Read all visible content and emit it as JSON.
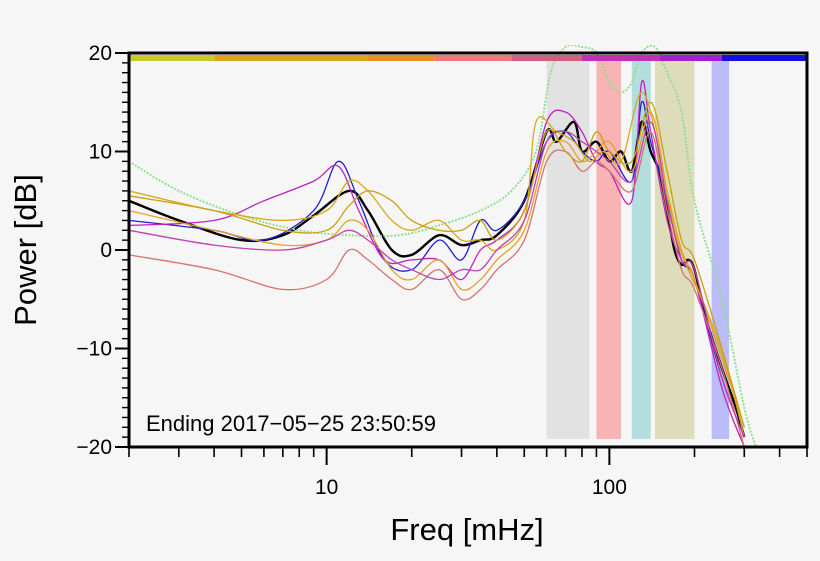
{
  "chart_data": {
    "type": "line",
    "title": "",
    "xlabel": "Freq [mHz]",
    "ylabel": "Power [dB]",
    "xscale": "log",
    "xlim": [
      2,
      500
    ],
    "ylim": [
      -20,
      20
    ],
    "x_ticks": [
      10,
      100
    ],
    "y_ticks": [
      20,
      10,
      0,
      -10,
      -20
    ],
    "x_tick_labels": [
      "10",
      "100"
    ],
    "y_tick_labels": [
      "20",
      "10",
      "0",
      "−10",
      "−20"
    ],
    "grid": false,
    "annotation": "Ending 2017−05−25 23:50:59",
    "top_color_bar": [
      {
        "from": 2,
        "to": 4,
        "color": "#c8c828"
      },
      {
        "from": 4,
        "to": 14,
        "color": "#d8a818"
      },
      {
        "from": 14,
        "to": 24,
        "color": "#e89020"
      },
      {
        "from": 24,
        "to": 45,
        "color": "#f07878"
      },
      {
        "from": 45,
        "to": 80,
        "color": "#d06080"
      },
      {
        "from": 80,
        "to": 150,
        "color": "#c030b0"
      },
      {
        "from": 150,
        "to": 250,
        "color": "#a020d0"
      },
      {
        "from": 250,
        "to": 500,
        "color": "#1010e0"
      }
    ],
    "bands": [
      {
        "from": 60,
        "to": 85,
        "color": "#dedede"
      },
      {
        "from": 90,
        "to": 110,
        "color": "#f8a8a8"
      },
      {
        "from": 120,
        "to": 140,
        "color": "#a8d8d8"
      },
      {
        "from": 145,
        "to": 200,
        "color": "#d8d8b0"
      },
      {
        "from": 230,
        "to": 265,
        "color": "#b0b0f8"
      }
    ],
    "series": [
      {
        "color": "#000000",
        "width": 2.4,
        "points": [
          [
            2,
            5
          ],
          [
            3,
            3
          ],
          [
            5,
            1
          ],
          [
            7,
            1.5
          ],
          [
            9,
            3.5
          ],
          [
            12,
            6
          ],
          [
            14,
            4
          ],
          [
            17,
            0
          ],
          [
            20,
            -0.5
          ],
          [
            25,
            1.5
          ],
          [
            30,
            0.5
          ],
          [
            35,
            1
          ],
          [
            40,
            1.5
          ],
          [
            50,
            5
          ],
          [
            60,
            12
          ],
          [
            65,
            11
          ],
          [
            75,
            13
          ],
          [
            80,
            10
          ],
          [
            90,
            11
          ],
          [
            100,
            9
          ],
          [
            110,
            10
          ],
          [
            120,
            8
          ],
          [
            130,
            13
          ],
          [
            140,
            10
          ],
          [
            150,
            8
          ],
          [
            160,
            4
          ],
          [
            170,
            0
          ],
          [
            180,
            -1.5
          ],
          [
            190,
            -1
          ],
          [
            200,
            -2
          ],
          [
            220,
            -7
          ],
          [
            250,
            -12
          ],
          [
            280,
            -16
          ],
          [
            300,
            -19
          ]
        ]
      },
      {
        "color": "#90e090",
        "width": 2,
        "dashed": true,
        "points": [
          [
            2,
            9
          ],
          [
            3,
            6
          ],
          [
            5,
            3.5
          ],
          [
            8,
            2
          ],
          [
            12,
            1.5
          ],
          [
            18,
            1.5
          ],
          [
            25,
            2.5
          ],
          [
            35,
            4
          ],
          [
            45,
            6
          ],
          [
            55,
            10
          ],
          [
            62,
            18
          ],
          [
            70,
            22
          ],
          [
            80,
            25
          ],
          [
            90,
            20
          ],
          [
            100,
            17
          ],
          [
            110,
            16
          ],
          [
            120,
            17
          ],
          [
            130,
            20
          ],
          [
            145,
            23
          ],
          [
            160,
            18
          ],
          [
            180,
            14
          ],
          [
            200,
            5
          ],
          [
            250,
            -5
          ],
          [
            300,
            -16
          ],
          [
            330,
            -20
          ]
        ]
      },
      {
        "color": "#2020cc",
        "width": 1.3,
        "points": [
          [
            2,
            3
          ],
          [
            4,
            2
          ],
          [
            6,
            1
          ],
          [
            9,
            4
          ],
          [
            11,
            9
          ],
          [
            13,
            5
          ],
          [
            16,
            -1
          ],
          [
            20,
            -2
          ],
          [
            25,
            1
          ],
          [
            30,
            -1
          ],
          [
            35,
            3
          ],
          [
            40,
            2
          ],
          [
            50,
            5
          ],
          [
            60,
            11
          ],
          [
            70,
            12
          ],
          [
            80,
            10
          ],
          [
            90,
            9
          ],
          [
            100,
            10
          ],
          [
            120,
            7
          ],
          [
            130,
            15
          ],
          [
            140,
            11
          ],
          [
            160,
            5
          ],
          [
            180,
            -1
          ],
          [
            200,
            -3
          ],
          [
            250,
            -13
          ],
          [
            300,
            -19
          ]
        ]
      },
      {
        "color": "#c020c0",
        "width": 1.3,
        "points": [
          [
            2,
            2.5
          ],
          [
            4,
            3
          ],
          [
            6,
            5
          ],
          [
            9,
            7
          ],
          [
            11,
            8.5
          ],
          [
            13,
            4
          ],
          [
            16,
            -1
          ],
          [
            20,
            -1
          ],
          [
            25,
            -1
          ],
          [
            30,
            -3
          ],
          [
            35,
            0
          ],
          [
            40,
            1
          ],
          [
            50,
            4
          ],
          [
            60,
            13
          ],
          [
            70,
            14
          ],
          [
            80,
            12
          ],
          [
            90,
            9
          ],
          [
            100,
            8
          ],
          [
            120,
            5
          ],
          [
            130,
            17
          ],
          [
            140,
            12
          ],
          [
            160,
            3
          ],
          [
            180,
            -1
          ],
          [
            200,
            -3
          ],
          [
            250,
            -14
          ],
          [
            300,
            -20
          ]
        ]
      },
      {
        "color": "#d8a818",
        "width": 1.3,
        "points": [
          [
            2,
            6
          ],
          [
            4,
            4
          ],
          [
            7,
            3
          ],
          [
            10,
            4
          ],
          [
            12,
            7
          ],
          [
            14,
            6
          ],
          [
            17,
            3
          ],
          [
            20,
            2
          ],
          [
            25,
            3
          ],
          [
            30,
            1
          ],
          [
            35,
            1
          ],
          [
            40,
            0
          ],
          [
            50,
            3
          ],
          [
            55,
            13
          ],
          [
            65,
            12
          ],
          [
            75,
            11
          ],
          [
            85,
            9
          ],
          [
            95,
            10
          ],
          [
            110,
            9
          ],
          [
            130,
            16
          ],
          [
            150,
            10
          ],
          [
            170,
            2
          ],
          [
            190,
            -2
          ],
          [
            220,
            -6
          ],
          [
            260,
            -12
          ],
          [
            300,
            -19
          ]
        ]
      },
      {
        "color": "#e8a028",
        "width": 1.3,
        "points": [
          [
            2,
            4
          ],
          [
            4,
            2
          ],
          [
            7,
            0.5
          ],
          [
            10,
            1
          ],
          [
            12,
            3
          ],
          [
            14,
            2
          ],
          [
            17,
            -2
          ],
          [
            20,
            -3
          ],
          [
            25,
            -1
          ],
          [
            30,
            -4
          ],
          [
            35,
            -3
          ],
          [
            40,
            -1
          ],
          [
            50,
            2
          ],
          [
            60,
            10
          ],
          [
            70,
            11
          ],
          [
            80,
            9
          ],
          [
            90,
            10
          ],
          [
            100,
            11
          ],
          [
            120,
            8
          ],
          [
            140,
            14
          ],
          [
            160,
            6
          ],
          [
            180,
            0
          ],
          [
            200,
            -3
          ],
          [
            250,
            -11
          ],
          [
            300,
            -18
          ]
        ]
      },
      {
        "color": "#d87070",
        "width": 1.3,
        "points": [
          [
            2,
            -0.5
          ],
          [
            4,
            -2
          ],
          [
            7,
            -4
          ],
          [
            10,
            -3
          ],
          [
            12,
            0
          ],
          [
            14,
            -1
          ],
          [
            17,
            -3
          ],
          [
            20,
            -4
          ],
          [
            25,
            -2
          ],
          [
            30,
            -5
          ],
          [
            35,
            -4
          ],
          [
            40,
            -2
          ],
          [
            50,
            1
          ],
          [
            60,
            9
          ],
          [
            70,
            10
          ],
          [
            80,
            8
          ],
          [
            90,
            9
          ],
          [
            100,
            8
          ],
          [
            120,
            6
          ],
          [
            140,
            12
          ],
          [
            160,
            4
          ],
          [
            180,
            -2
          ],
          [
            200,
            -4
          ],
          [
            250,
            -12
          ],
          [
            300,
            -20
          ]
        ]
      },
      {
        "color": "#c8a010",
        "width": 1.3,
        "points": [
          [
            2,
            5.5
          ],
          [
            4,
            4
          ],
          [
            7,
            2
          ],
          [
            10,
            2
          ],
          [
            12,
            4.5
          ],
          [
            14,
            6
          ],
          [
            17,
            5
          ],
          [
            20,
            3
          ],
          [
            25,
            2
          ],
          [
            30,
            2
          ],
          [
            35,
            3
          ],
          [
            40,
            1
          ],
          [
            50,
            4
          ],
          [
            60,
            12
          ],
          [
            70,
            10
          ],
          [
            80,
            9
          ],
          [
            90,
            12
          ],
          [
            100,
            10
          ],
          [
            120,
            9
          ],
          [
            140,
            15
          ],
          [
            160,
            8
          ],
          [
            180,
            1
          ],
          [
            200,
            -1
          ],
          [
            250,
            -10
          ],
          [
            300,
            -18
          ]
        ]
      },
      {
        "color": "#c040b0",
        "width": 1.3,
        "points": [
          [
            2,
            2
          ],
          [
            4,
            0.5
          ],
          [
            7,
            0
          ],
          [
            10,
            1
          ],
          [
            12,
            2
          ],
          [
            14,
            1
          ],
          [
            17,
            -1
          ],
          [
            20,
            -2
          ],
          [
            25,
            -3
          ],
          [
            30,
            -2
          ],
          [
            35,
            -2
          ],
          [
            40,
            0
          ],
          [
            50,
            3
          ],
          [
            60,
            11
          ],
          [
            70,
            12
          ],
          [
            80,
            11
          ],
          [
            90,
            10
          ],
          [
            100,
            9
          ],
          [
            120,
            7
          ],
          [
            140,
            13
          ],
          [
            160,
            5
          ],
          [
            180,
            -1
          ],
          [
            200,
            -2
          ],
          [
            250,
            -13
          ],
          [
            300,
            -19
          ]
        ]
      }
    ]
  }
}
